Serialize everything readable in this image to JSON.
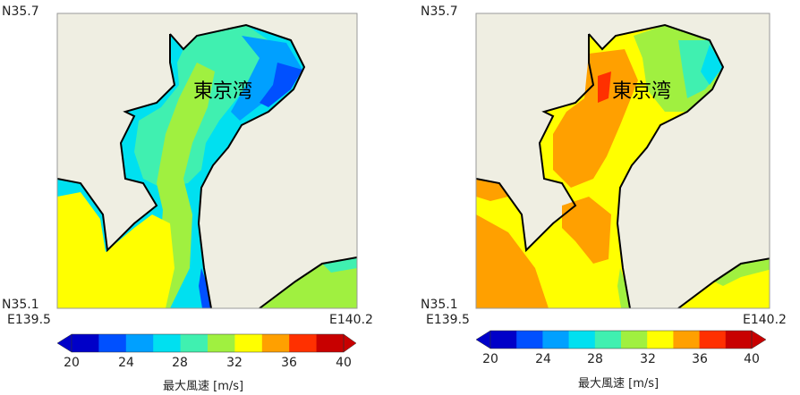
{
  "panels": [
    {
      "id": "left",
      "lat_top": "N35.7",
      "lat_bottom": "N35.1",
      "lon_left": "E139.5",
      "lon_right": "E140.2",
      "place_label": "東京湾",
      "colorbar_ticks": [
        "20",
        "24",
        "28",
        "32",
        "36",
        "40"
      ],
      "colorbar_title": "最大風速 [m/s]"
    },
    {
      "id": "right",
      "lat_top": "N35.7",
      "lat_bottom": "N35.1",
      "lon_left": "E139.5",
      "lon_right": "E140.2",
      "place_label": "東京湾",
      "colorbar_ticks": [
        "20",
        "24",
        "28",
        "32",
        "36",
        "40"
      ],
      "colorbar_title": "最大風速 [m/s]"
    }
  ],
  "colorbar_colors": [
    "#0000c8",
    "#0050ff",
    "#00a0ff",
    "#00e0f0",
    "#40f0b0",
    "#a0f040",
    "#ffff00",
    "#ffa000",
    "#ff3000",
    "#c80000"
  ],
  "land_color": "#efeee2"
}
